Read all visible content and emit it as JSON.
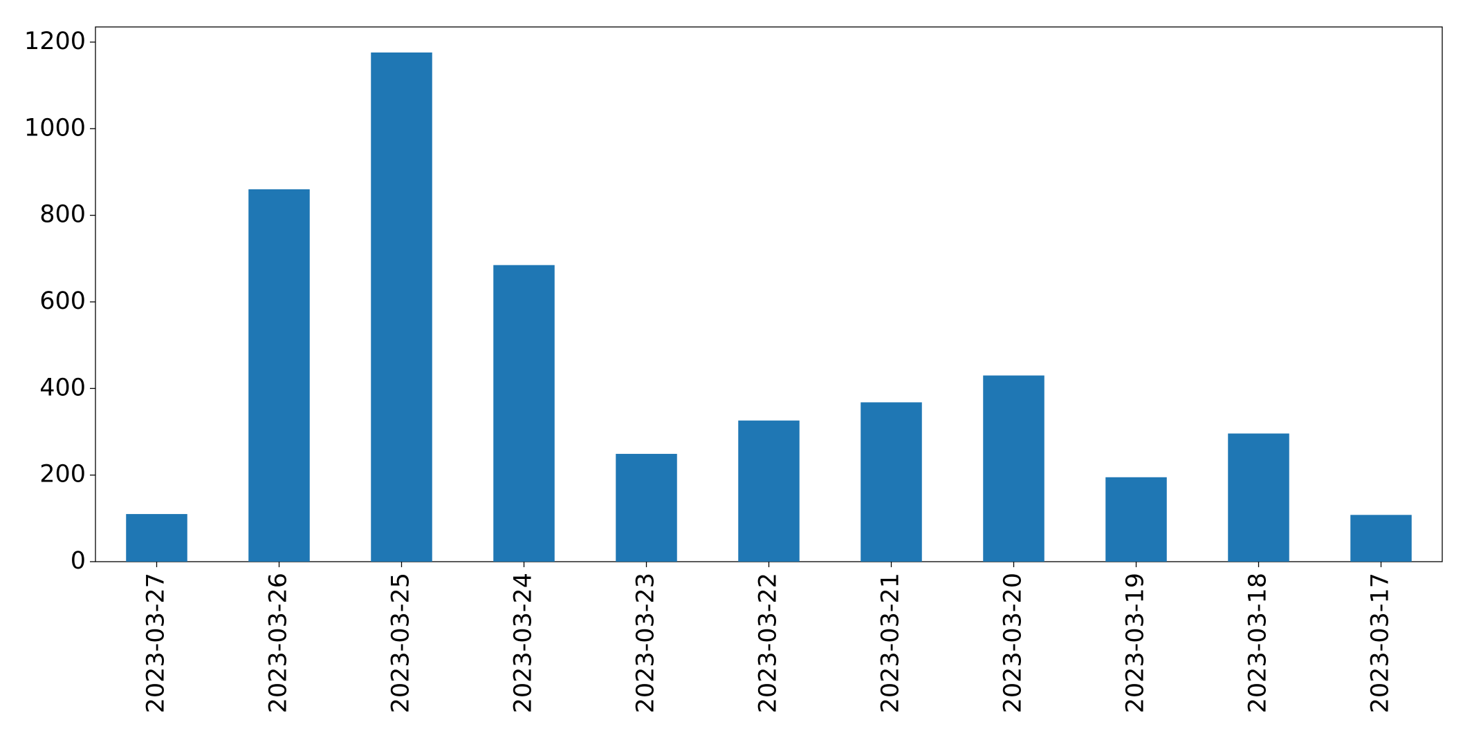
{
  "chart_data": {
    "type": "bar",
    "categories": [
      "2023-03-27",
      "2023-03-26",
      "2023-03-25",
      "2023-03-24",
      "2023-03-23",
      "2023-03-22",
      "2023-03-21",
      "2023-03-20",
      "2023-03-19",
      "2023-03-18",
      "2023-03-17"
    ],
    "values": [
      110,
      860,
      1176,
      685,
      249,
      326,
      368,
      430,
      195,
      296,
      108
    ],
    "color": "#1f77b4",
    "ylim": [
      0,
      1235
    ],
    "yticks": [
      0,
      200,
      400,
      600,
      800,
      1000,
      1200
    ],
    "grid": false
  }
}
